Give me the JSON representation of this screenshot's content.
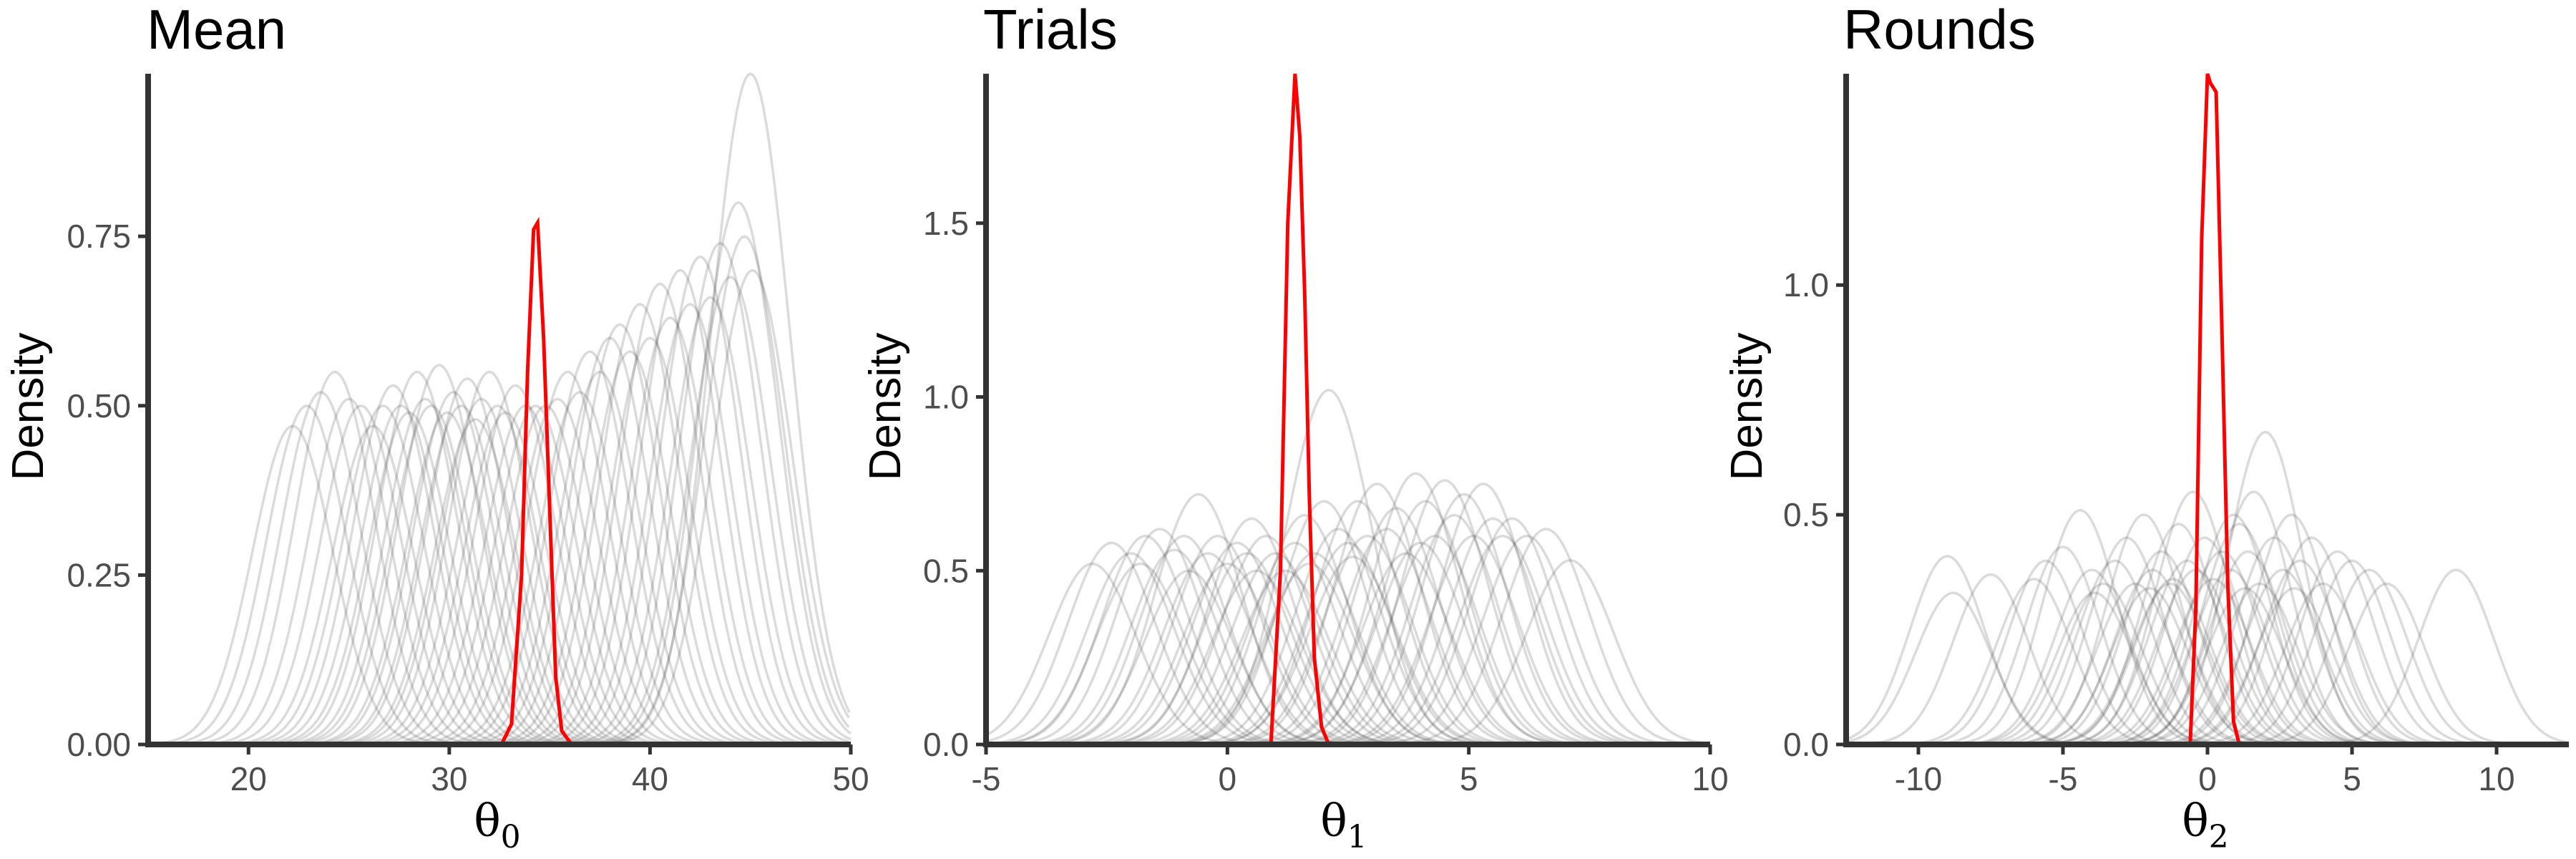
{
  "chart_data": [
    {
      "type": "line",
      "title": "Mean",
      "xlabel_symbol": "θ",
      "xlabel_subscript": "0",
      "ylabel": "Density",
      "xlim": [
        15,
        50
      ],
      "ylim": [
        0,
        0.99
      ],
      "xticks": [
        {
          "value": 20,
          "label": "20"
        },
        {
          "value": 30,
          "label": "30"
        },
        {
          "value": 40,
          "label": "40"
        },
        {
          "value": 50,
          "label": "50"
        }
      ],
      "yticks": [
        {
          "value": 0,
          "label": "0.00"
        },
        {
          "value": 0.25,
          "label": "0.25"
        },
        {
          "value": 0.5,
          "label": "0.50"
        },
        {
          "value": 0.75,
          "label": "0.75"
        }
      ],
      "grid": false,
      "posterior_color": "#ff0000",
      "simulation_color": "#4d4d4d",
      "posterior": {
        "x": [
          32.6,
          33.1,
          33.6,
          33.9,
          34.2,
          34.4,
          34.7,
          35.0,
          35.3,
          35.6,
          36.1
        ],
        "y": [
          0.0,
          0.03,
          0.25,
          0.55,
          0.76,
          0.77,
          0.6,
          0.35,
          0.1,
          0.02,
          0.0
        ]
      },
      "simulations": [
        {
          "center": 22.2,
          "peak": 0.47,
          "width": 2.0
        },
        {
          "center": 22.9,
          "peak": 0.5,
          "width": 2.0
        },
        {
          "center": 23.6,
          "peak": 0.52,
          "width": 2.0
        },
        {
          "center": 24.3,
          "peak": 0.55,
          "width": 2.0
        },
        {
          "center": 25.0,
          "peak": 0.51,
          "width": 2.0
        },
        {
          "center": 25.6,
          "peak": 0.5,
          "width": 2.0
        },
        {
          "center": 26.2,
          "peak": 0.47,
          "width": 2.0
        },
        {
          "center": 26.7,
          "peak": 0.5,
          "width": 2.0
        },
        {
          "center": 27.2,
          "peak": 0.53,
          "width": 2.0
        },
        {
          "center": 27.6,
          "peak": 0.5,
          "width": 2.0
        },
        {
          "center": 28.0,
          "peak": 0.49,
          "width": 2.0
        },
        {
          "center": 28.4,
          "peak": 0.55,
          "width": 2.0
        },
        {
          "center": 28.8,
          "peak": 0.51,
          "width": 2.0
        },
        {
          "center": 29.1,
          "peak": 0.5,
          "width": 2.0
        },
        {
          "center": 29.5,
          "peak": 0.56,
          "width": 2.0
        },
        {
          "center": 29.9,
          "peak": 0.49,
          "width": 2.0
        },
        {
          "center": 30.2,
          "peak": 0.52,
          "width": 2.0
        },
        {
          "center": 30.6,
          "peak": 0.5,
          "width": 2.0
        },
        {
          "center": 30.9,
          "peak": 0.54,
          "width": 2.0
        },
        {
          "center": 31.3,
          "peak": 0.48,
          "width": 2.0
        },
        {
          "center": 31.6,
          "peak": 0.51,
          "width": 2.0
        },
        {
          "center": 32.0,
          "peak": 0.55,
          "width": 2.0
        },
        {
          "center": 32.4,
          "peak": 0.5,
          "width": 2.0
        },
        {
          "center": 32.8,
          "peak": 0.49,
          "width": 2.0
        },
        {
          "center": 33.3,
          "peak": 0.53,
          "width": 2.0
        },
        {
          "center": 33.8,
          "peak": 0.5,
          "width": 2.0
        },
        {
          "center": 34.3,
          "peak": 0.5,
          "width": 2.0
        },
        {
          "center": 34.8,
          "peak": 0.5,
          "width": 2.0
        },
        {
          "center": 35.4,
          "peak": 0.51,
          "width": 2.0
        },
        {
          "center": 35.9,
          "peak": 0.55,
          "width": 2.0
        },
        {
          "center": 36.5,
          "peak": 0.52,
          "width": 2.0
        },
        {
          "center": 37.0,
          "peak": 0.58,
          "width": 2.0
        },
        {
          "center": 37.5,
          "peak": 0.55,
          "width": 2.0
        },
        {
          "center": 38.0,
          "peak": 0.6,
          "width": 2.0
        },
        {
          "center": 38.5,
          "peak": 0.62,
          "width": 2.0
        },
        {
          "center": 39.0,
          "peak": 0.58,
          "width": 2.0
        },
        {
          "center": 39.5,
          "peak": 0.65,
          "width": 2.0
        },
        {
          "center": 40.0,
          "peak": 0.6,
          "width": 2.0
        },
        {
          "center": 40.5,
          "peak": 0.68,
          "width": 2.0
        },
        {
          "center": 41.0,
          "peak": 0.63,
          "width": 2.0
        },
        {
          "center": 41.5,
          "peak": 0.7,
          "width": 2.0
        },
        {
          "center": 42.0,
          "peak": 0.65,
          "width": 2.0
        },
        {
          "center": 42.5,
          "peak": 0.72,
          "width": 2.0
        },
        {
          "center": 43.0,
          "peak": 0.66,
          "width": 2.0
        },
        {
          "center": 43.5,
          "peak": 0.74,
          "width": 2.0
        },
        {
          "center": 44.0,
          "peak": 0.69,
          "width": 2.0
        },
        {
          "center": 44.4,
          "peak": 0.8,
          "width": 2.0
        },
        {
          "center": 44.7,
          "peak": 0.75,
          "width": 2.0
        },
        {
          "center": 45.0,
          "peak": 0.99,
          "width": 2.0
        },
        {
          "center": 45.1,
          "peak": 0.7,
          "width": 2.0
        }
      ]
    },
    {
      "type": "line",
      "title": "Trials",
      "xlabel_symbol": "θ",
      "xlabel_subscript": "1",
      "ylabel": "Density",
      "xlim": [
        -5,
        10
      ],
      "ylim": [
        0,
        1.93
      ],
      "xticks": [
        {
          "value": -5,
          "label": "-5"
        },
        {
          "value": 0,
          "label": "0"
        },
        {
          "value": 5,
          "label": "5"
        },
        {
          "value": 10,
          "label": "10"
        }
      ],
      "yticks": [
        {
          "value": 0,
          "label": "0.0"
        },
        {
          "value": 0.5,
          "label": "0.5"
        },
        {
          "value": 1.0,
          "label": "1.0"
        },
        {
          "value": 1.5,
          "label": "1.5"
        }
      ],
      "grid": false,
      "posterior_color": "#ff0000",
      "simulation_color": "#4d4d4d",
      "posterior": {
        "x": [
          0.9,
          1.1,
          1.25,
          1.4,
          1.5,
          1.6,
          1.7,
          1.8,
          1.95,
          2.1
        ],
        "y": [
          0.0,
          0.5,
          1.5,
          1.93,
          1.75,
          1.3,
          0.7,
          0.25,
          0.05,
          0.0
        ]
      },
      "simulations": [
        {
          "center": -2.8,
          "peak": 0.52,
          "width": 0.9
        },
        {
          "center": -2.4,
          "peak": 0.58,
          "width": 0.9
        },
        {
          "center": -2.0,
          "peak": 0.55,
          "width": 0.9
        },
        {
          "center": -1.7,
          "peak": 0.6,
          "width": 0.9
        },
        {
          "center": -1.4,
          "peak": 0.62,
          "width": 0.9
        },
        {
          "center": -1.1,
          "peak": 0.56,
          "width": 0.9
        },
        {
          "center": -0.9,
          "peak": 0.6,
          "width": 0.9
        },
        {
          "center": -0.6,
          "peak": 0.72,
          "width": 0.9
        },
        {
          "center": -0.4,
          "peak": 0.55,
          "width": 0.9
        },
        {
          "center": -0.2,
          "peak": 0.6,
          "width": 0.9
        },
        {
          "center": 0.0,
          "peak": 0.52,
          "width": 0.9
        },
        {
          "center": 0.2,
          "peak": 0.58,
          "width": 0.9
        },
        {
          "center": 0.4,
          "peak": 0.55,
          "width": 0.9
        },
        {
          "center": 0.6,
          "peak": 0.5,
          "width": 0.9
        },
        {
          "center": 0.8,
          "peak": 0.6,
          "width": 0.9
        },
        {
          "center": 1.0,
          "peak": 0.55,
          "width": 0.9
        },
        {
          "center": 1.2,
          "peak": 0.5,
          "width": 0.9
        },
        {
          "center": 1.4,
          "peak": 0.58,
          "width": 0.9
        },
        {
          "center": 1.6,
          "peak": 0.66,
          "width": 0.9
        },
        {
          "center": 1.8,
          "peak": 0.55,
          "width": 0.9
        },
        {
          "center": 2.0,
          "peak": 0.7,
          "width": 0.9
        },
        {
          "center": 2.1,
          "peak": 1.02,
          "width": 0.9
        },
        {
          "center": 2.3,
          "peak": 0.62,
          "width": 0.9
        },
        {
          "center": 2.5,
          "peak": 0.58,
          "width": 0.9
        },
        {
          "center": 2.7,
          "peak": 0.7,
          "width": 0.9
        },
        {
          "center": 2.9,
          "peak": 0.6,
          "width": 0.9
        },
        {
          "center": 3.1,
          "peak": 0.75,
          "width": 0.9
        },
        {
          "center": 3.3,
          "peak": 0.62,
          "width": 0.9
        },
        {
          "center": 3.5,
          "peak": 0.68,
          "width": 0.9
        },
        {
          "center": 3.7,
          "peak": 0.55,
          "width": 0.9
        },
        {
          "center": 3.9,
          "peak": 0.78,
          "width": 0.9
        },
        {
          "center": 4.1,
          "peak": 0.7,
          "width": 0.9
        },
        {
          "center": 4.3,
          "peak": 0.6,
          "width": 0.9
        },
        {
          "center": 4.5,
          "peak": 0.76,
          "width": 0.9
        },
        {
          "center": 4.7,
          "peak": 0.66,
          "width": 0.9
        },
        {
          "center": 4.9,
          "peak": 0.72,
          "width": 0.9
        },
        {
          "center": 5.1,
          "peak": 0.6,
          "width": 0.9
        },
        {
          "center": 5.3,
          "peak": 0.75,
          "width": 0.9
        },
        {
          "center": 5.5,
          "peak": 0.65,
          "width": 0.9
        },
        {
          "center": 5.7,
          "peak": 0.6,
          "width": 0.9
        },
        {
          "center": 5.9,
          "peak": 0.65,
          "width": 0.9
        },
        {
          "center": 6.2,
          "peak": 0.6,
          "width": 0.9
        },
        {
          "center": 6.6,
          "peak": 0.62,
          "width": 0.9
        },
        {
          "center": 7.1,
          "peak": 0.53,
          "width": 0.9
        },
        {
          "center": -1.8,
          "peak": 0.52,
          "width": 0.9
        },
        {
          "center": 0.5,
          "peak": 0.65,
          "width": 0.9
        },
        {
          "center": 2.6,
          "peak": 0.54,
          "width": 0.9
        },
        {
          "center": 4.0,
          "peak": 0.58,
          "width": 0.9
        },
        {
          "center": -0.8,
          "peak": 0.5,
          "width": 0.9
        },
        {
          "center": 1.7,
          "peak": 0.52,
          "width": 0.9
        }
      ]
    },
    {
      "type": "line",
      "title": "Rounds",
      "xlabel_symbol": "θ",
      "xlabel_subscript": "2",
      "ylabel": "Density",
      "xlim": [
        -12.5,
        12.5
      ],
      "ylim": [
        0,
        1.46
      ],
      "xticks": [
        {
          "value": -10,
          "label": "-10"
        },
        {
          "value": -5,
          "label": "-5"
        },
        {
          "value": 0,
          "label": "0"
        },
        {
          "value": 5,
          "label": "5"
        },
        {
          "value": 10,
          "label": "10"
        }
      ],
      "yticks": [
        {
          "value": 0,
          "label": "0.0"
        },
        {
          "value": 0.5,
          "label": "0.5"
        },
        {
          "value": 1.0,
          "label": "1.0"
        }
      ],
      "grid": false,
      "posterior_color": "#ff0000",
      "simulation_color": "#4d4d4d",
      "posterior": {
        "x": [
          -0.6,
          -0.4,
          -0.2,
          0.0,
          0.1,
          0.3,
          0.5,
          0.7,
          0.9,
          1.1
        ],
        "y": [
          0.0,
          0.3,
          1.1,
          1.46,
          1.44,
          1.42,
          0.9,
          0.35,
          0.05,
          0.0
        ]
      },
      "simulations": [
        {
          "center": -9.0,
          "peak": 0.41,
          "width": 1.3
        },
        {
          "center": -8.8,
          "peak": 0.33,
          "width": 1.3
        },
        {
          "center": -7.5,
          "peak": 0.37,
          "width": 1.3
        },
        {
          "center": -6.0,
          "peak": 0.36,
          "width": 1.3
        },
        {
          "center": -5.6,
          "peak": 0.4,
          "width": 1.3
        },
        {
          "center": -5.0,
          "peak": 0.43,
          "width": 1.3
        },
        {
          "center": -4.4,
          "peak": 0.51,
          "width": 1.3
        },
        {
          "center": -4.0,
          "peak": 0.38,
          "width": 1.3
        },
        {
          "center": -3.6,
          "peak": 0.35,
          "width": 1.3
        },
        {
          "center": -3.2,
          "peak": 0.4,
          "width": 1.3
        },
        {
          "center": -2.8,
          "peak": 0.45,
          "width": 1.3
        },
        {
          "center": -2.5,
          "peak": 0.35,
          "width": 1.3
        },
        {
          "center": -2.2,
          "peak": 0.5,
          "width": 1.3
        },
        {
          "center": -1.9,
          "peak": 0.38,
          "width": 1.3
        },
        {
          "center": -1.6,
          "peak": 0.42,
          "width": 1.3
        },
        {
          "center": -1.3,
          "peak": 0.35,
          "width": 1.3
        },
        {
          "center": -1.0,
          "peak": 0.48,
          "width": 1.3
        },
        {
          "center": -0.7,
          "peak": 0.4,
          "width": 1.3
        },
        {
          "center": -0.4,
          "peak": 0.38,
          "width": 1.3
        },
        {
          "center": -0.1,
          "peak": 0.45,
          "width": 1.3
        },
        {
          "center": 0.2,
          "peak": 0.36,
          "width": 1.3
        },
        {
          "center": 0.5,
          "peak": 0.42,
          "width": 1.3
        },
        {
          "center": 0.8,
          "peak": 0.38,
          "width": 1.3
        },
        {
          "center": 1.1,
          "peak": 0.48,
          "width": 1.3
        },
        {
          "center": 1.4,
          "peak": 0.42,
          "width": 1.3
        },
        {
          "center": 1.6,
          "peak": 0.55,
          "width": 1.3
        },
        {
          "center": 1.8,
          "peak": 0.35,
          "width": 1.3
        },
        {
          "center": 2.0,
          "peak": 0.68,
          "width": 1.3
        },
        {
          "center": 2.3,
          "peak": 0.45,
          "width": 1.3
        },
        {
          "center": 2.6,
          "peak": 0.38,
          "width": 1.3
        },
        {
          "center": 2.9,
          "peak": 0.5,
          "width": 1.3
        },
        {
          "center": 3.2,
          "peak": 0.4,
          "width": 1.3
        },
        {
          "center": 3.6,
          "peak": 0.45,
          "width": 1.3
        },
        {
          "center": 4.0,
          "peak": 0.35,
          "width": 1.3
        },
        {
          "center": 4.5,
          "peak": 0.42,
          "width": 1.3
        },
        {
          "center": 5.0,
          "peak": 0.4,
          "width": 1.3
        },
        {
          "center": 5.6,
          "peak": 0.38,
          "width": 1.3
        },
        {
          "center": 6.2,
          "peak": 0.35,
          "width": 1.3
        },
        {
          "center": 8.6,
          "peak": 0.38,
          "width": 1.3
        },
        {
          "center": -3.9,
          "peak": 0.33,
          "width": 1.3
        },
        {
          "center": -0.5,
          "peak": 0.55,
          "width": 1.3
        },
        {
          "center": 0.9,
          "peak": 0.5,
          "width": 1.3
        },
        {
          "center": 3.0,
          "peak": 0.34,
          "width": 1.3
        },
        {
          "center": -2.0,
          "peak": 0.34,
          "width": 1.3
        },
        {
          "center": 1.3,
          "peak": 0.34,
          "width": 1.3
        },
        {
          "center": -1.2,
          "peak": 0.36,
          "width": 1.3
        }
      ]
    }
  ]
}
